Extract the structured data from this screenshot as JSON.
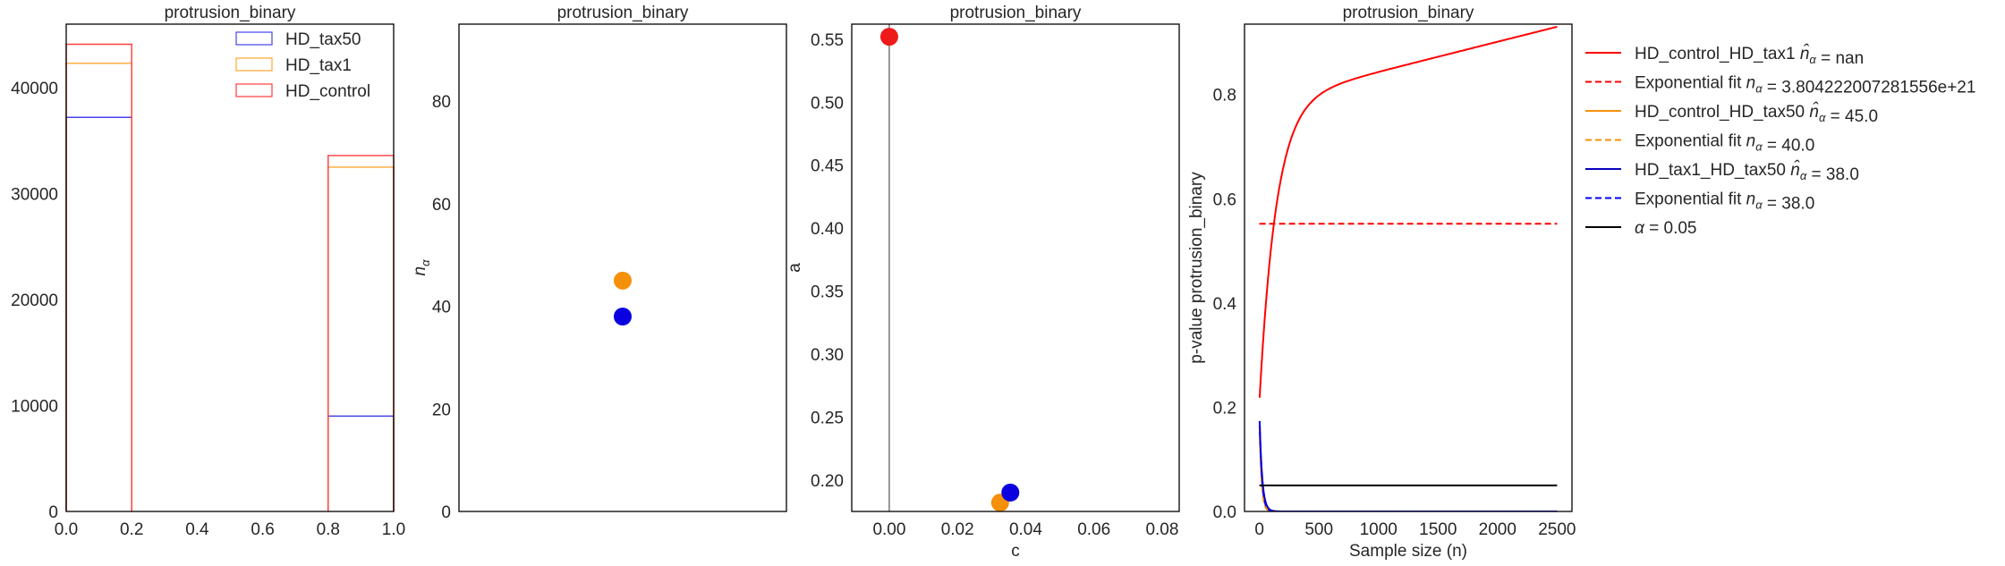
{
  "chart_data": [
    {
      "type": "histogram",
      "title": "protrusion_binary",
      "xlim": [
        0,
        1
      ],
      "ylim": [
        0,
        46000
      ],
      "xticks": [
        "0.0",
        "0.2",
        "0.4",
        "0.6",
        "0.8",
        "1.0"
      ],
      "yticks": [
        "0",
        "10000",
        "20000",
        "30000",
        "40000"
      ],
      "bins": [
        [
          0.0,
          0.2
        ],
        [
          0.8,
          1.0
        ]
      ],
      "series": [
        {
          "name": "HD_tax50",
          "color": "#4444ee",
          "values": [
            37200,
            9000
          ]
        },
        {
          "name": "HD_tax1",
          "color": "#ffa733",
          "values": [
            42300,
            32500
          ]
        },
        {
          "name": "HD_control",
          "color": "#ff3b3b",
          "values": [
            44100,
            33600
          ]
        }
      ],
      "legend_position": "top-right"
    },
    {
      "type": "scatter",
      "title": "protrusion_binary",
      "ylabel": "n_α",
      "ylim": [
        0,
        95
      ],
      "xticks": [],
      "yticks": [
        "0",
        "20",
        "40",
        "60",
        "80"
      ],
      "points": [
        {
          "y": 45.0,
          "color": "#f5900a"
        },
        {
          "y": 38.0,
          "color": "#0a00e0"
        }
      ]
    },
    {
      "type": "scatter",
      "title": "protrusion_binary",
      "xlabel": "c",
      "ylabel": "a",
      "xlim": [
        -0.011,
        0.085
      ],
      "ylim": [
        0.175,
        0.562
      ],
      "xticks": [
        "0.00",
        "0.02",
        "0.04",
        "0.06",
        "0.08"
      ],
      "yticks": [
        "0.20",
        "0.25",
        "0.30",
        "0.35",
        "0.40",
        "0.45",
        "0.50",
        "0.55"
      ],
      "vline_x": 0.0,
      "points": [
        {
          "x": 0.0,
          "y": 0.552,
          "color": "#ee1a1a"
        },
        {
          "x": 0.0325,
          "y": 0.182,
          "color": "#f5900a"
        },
        {
          "x": 0.0355,
          "y": 0.19,
          "color": "#0a00e0"
        }
      ]
    },
    {
      "type": "line",
      "title": "protrusion_binary",
      "xlabel": "Sample size (n)",
      "ylabel": "p-value protrusion_binary",
      "xlim": [
        -125,
        2625
      ],
      "ylim": [
        0,
        0.935
      ],
      "xticks": [
        "0",
        "500",
        "1000",
        "1500",
        "2000",
        "2500"
      ],
      "yticks": [
        "0.0",
        "0.2",
        "0.4",
        "0.6",
        "0.8"
      ],
      "series": [
        {
          "name": "HD_control_HD_tax1",
          "legend_label": "HD_control_HD_tax1 n̂_α = nan",
          "color": "#ff0000",
          "dash": false,
          "kind": "pvalue_red"
        },
        {
          "name": "Exponential fit",
          "legend_label": "Exponential fit n_α = 3.804222007281556e+21",
          "color": "#ff0000",
          "dash": true,
          "kind": "const",
          "y": 0.552
        },
        {
          "name": "HD_control_HD_tax50",
          "legend_label": "HD_control_HD_tax50 n̂_α = 45.0",
          "color": "#f5900a",
          "dash": false,
          "kind": "decay",
          "a": 0.182,
          "k": 0.055
        },
        {
          "name": "Exponential fit",
          "legend_label": "Exponential fit n_α = 40.0",
          "color": "#f5900a",
          "dash": true,
          "kind": "decay",
          "a": 0.182,
          "k": 0.06
        },
        {
          "name": "HD_tax1_HD_tax50",
          "legend_label": "HD_tax1_HD_tax50 n̂_α = 38.0",
          "color": "#0a00c0",
          "dash": false,
          "kind": "decay",
          "a": 0.19,
          "k": 0.045
        },
        {
          "name": "Exponential fit",
          "legend_label": "Exponential fit n_α = 38.0",
          "color": "#0000ff",
          "dash": true,
          "kind": "decay",
          "a": 0.19,
          "k": 0.05
        },
        {
          "name": "α = 0.05",
          "legend_label": "α = 0.05",
          "color": "#000000",
          "dash": false,
          "kind": "const",
          "y": 0.05
        }
      ]
    }
  ]
}
